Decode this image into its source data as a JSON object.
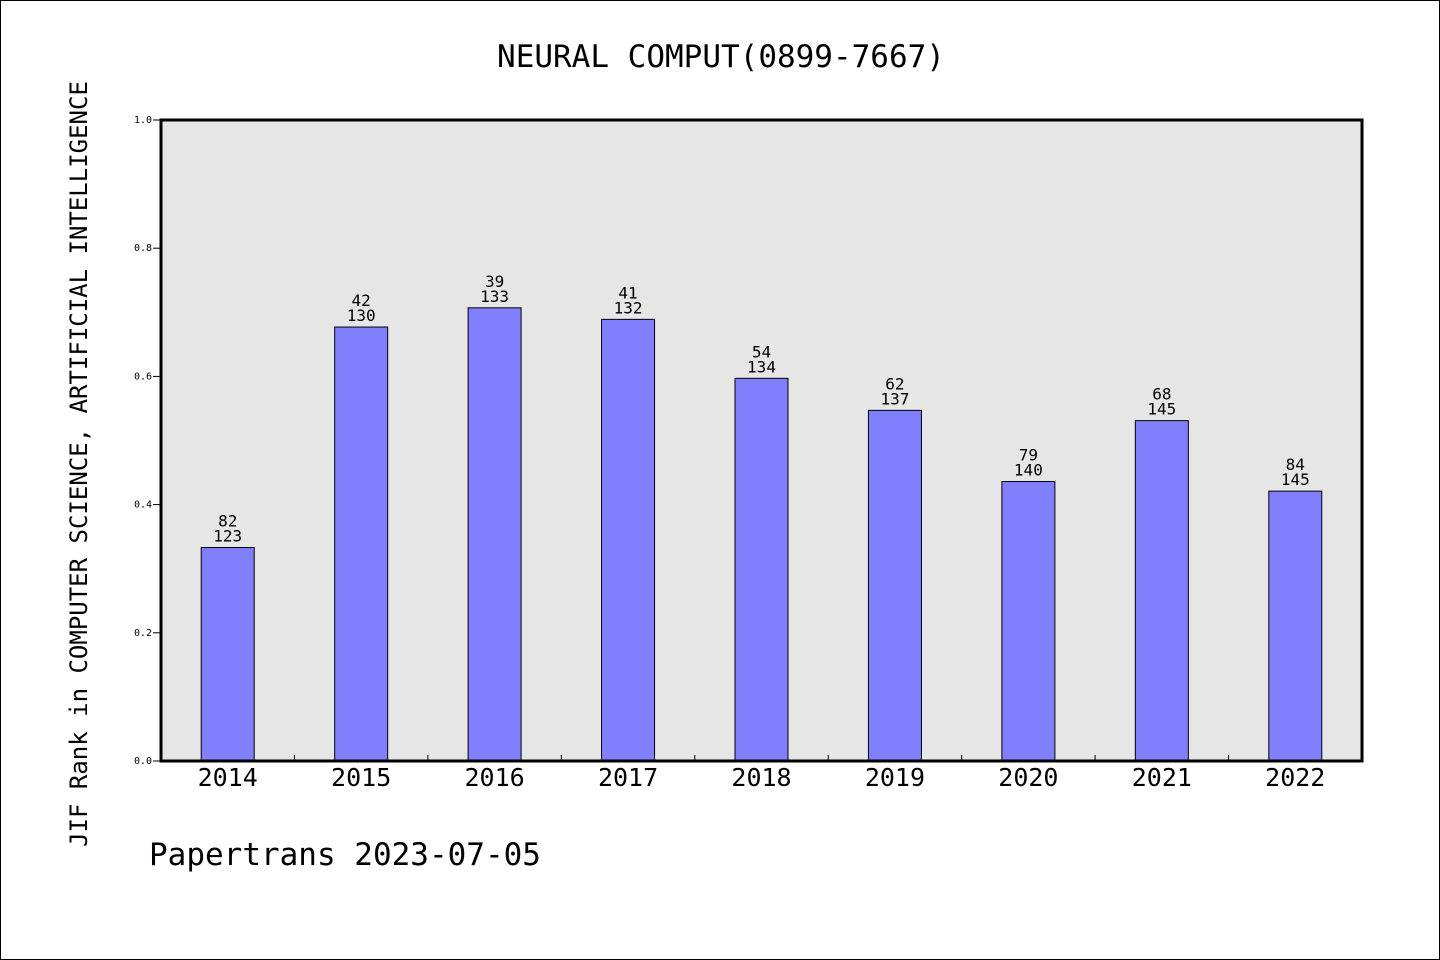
{
  "chart_data": {
    "type": "bar",
    "title": "NEURAL COMPUT(0899-7667)",
    "ylabel": "JIF Rank in COMPUTER SCIENCE, ARTIFICIAL INTELLIGENCE",
    "xlabel": "",
    "categories": [
      "2014",
      "2015",
      "2016",
      "2017",
      "2018",
      "2019",
      "2020",
      "2021",
      "2022"
    ],
    "values": [
      0.333,
      0.677,
      0.707,
      0.689,
      0.597,
      0.547,
      0.436,
      0.531,
      0.421
    ],
    "ranks": [
      "82",
      "42",
      "39",
      "41",
      "54",
      "62",
      "79",
      "68",
      "84"
    ],
    "totals": [
      "123",
      "130",
      "133",
      "132",
      "134",
      "137",
      "140",
      "145",
      "145"
    ],
    "ylim": [
      0,
      1.0
    ],
    "yticks": [
      "0.0",
      "0.2",
      "0.4",
      "0.6",
      "0.8",
      "1.0"
    ],
    "grid": false,
    "colors": {
      "bar": "#8080ff",
      "plot_bg": "#e6e6e6"
    }
  },
  "footer": "Papertrans 2023-07-05"
}
